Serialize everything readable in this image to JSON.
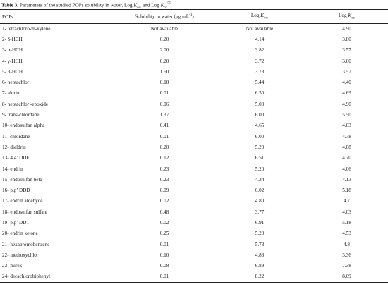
{
  "caption": {
    "label": "Table 3.",
    "text_main": " Parameters of the studied POPs solubility in water, Log ",
    "k1": "K",
    "k1_sub": "ow",
    "and": " and Log ",
    "k2": "K",
    "k2_sub": "oc",
    "ref": "55"
  },
  "headers": {
    "pops": "POPs",
    "solubility": "Solubility in water (μg mL",
    "solubility_sup": "-1",
    "solubility_close": ")",
    "logkow_prefix": "Log ",
    "logkow_k": "K",
    "logkow_sub": "ow",
    "logkoc_prefix": "Log ",
    "logkoc_k": "K",
    "logkoc_sub": "oc"
  },
  "rows": [
    {
      "name": "1- tetrachloro-m-xylene",
      "sol": "Not available",
      "kow": "Not available",
      "koc": "4.90"
    },
    {
      "name": "2- δ-HCH",
      "sol": "0.20",
      "kow": "4.14",
      "koc": "3.80"
    },
    {
      "name": "3- α-HCH",
      "sol": "2.00",
      "kow": "3.82",
      "koc": "3.57"
    },
    {
      "name": "4- γ-HCH",
      "sol": "0.20",
      "kow": "3.72",
      "koc": "3.00"
    },
    {
      "name": "5- β-HCH",
      "sol": "1.50",
      "kow": "3.78",
      "koc": "3.57"
    },
    {
      "name": "6- heptachlor",
      "sol": "0.18",
      "kow": "5.44",
      "koc": "4.40"
    },
    {
      "name": "7- aldrin",
      "sol": "0.01",
      "kow": "6.50",
      "koc": "4.69"
    },
    {
      "name": "8- heptachlor -epoxide",
      "sol": "0.06",
      "kow": "5.00",
      "koc": "4.90"
    },
    {
      "name": "9- trans-chlordane",
      "sol": "1.37",
      "kow": "6.00",
      "koc": "5.50"
    },
    {
      "name": "10- endosulfan alpha",
      "sol": "0.41",
      "kow": "4.65",
      "koc": "4.03"
    },
    {
      "name": "11- chlordane",
      "sol": "0.01",
      "kow": "6.00",
      "koc": "4.78"
    },
    {
      "name": "12- dieldrin",
      "sol": "0.20",
      "kow": "5.20",
      "koc": "4.08"
    },
    {
      "name": "13- 4,4’ DDE",
      "sol": "0.12",
      "kow": "6.51",
      "koc": "4.70"
    },
    {
      "name": "14- endrin",
      "sol": "0.23",
      "kow": "5.20",
      "koc": "4.06"
    },
    {
      "name": "15- endosulfan beta",
      "sol": "0.23",
      "kow": "4.34",
      "koc": "4.13"
    },
    {
      "name": "16- p,p’ DDD",
      "sol": "0.09",
      "kow": "6.02",
      "koc": "5.18"
    },
    {
      "name": "17- endrin aldehyde",
      "sol": "0.02",
      "kow": "4.80",
      "koc": "4.7"
    },
    {
      "name": "18- endosulfan sulfate",
      "sol": "0.48",
      "kow": "3.77",
      "koc": "4.03"
    },
    {
      "name": "19- p,p’ DDT",
      "sol": "0.02",
      "kow": "6.91",
      "koc": "5.18"
    },
    {
      "name": "20- endrin ketone",
      "sol": "0.25",
      "kow": "5.20",
      "koc": "4.53"
    },
    {
      "name": "21- hexabromobenzene",
      "sol": "0.01",
      "kow": "5.73",
      "koc": "4.8"
    },
    {
      "name": "22- methoxychlor",
      "sol": "0.10",
      "kow": "4.83",
      "koc": "3.36"
    },
    {
      "name": "23- mirex",
      "sol": "0.08",
      "kow": "6.89",
      "koc": "7.38"
    },
    {
      "name": "24- decachlorobiphenyl",
      "sol": "0.01",
      "kow": "8.22",
      "koc": "8.09"
    }
  ]
}
